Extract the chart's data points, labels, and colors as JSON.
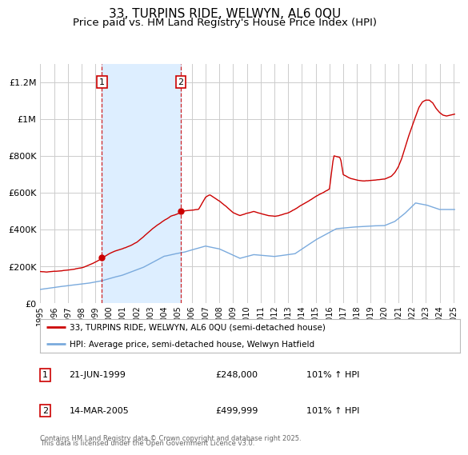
{
  "title": "33, TURPINS RIDE, WELWYN, AL6 0QU",
  "subtitle": "Price paid vs. HM Land Registry's House Price Index (HPI)",
  "title_fontsize": 11,
  "subtitle_fontsize": 9.5,
  "background_color": "#ffffff",
  "plot_bg_color": "#ffffff",
  "grid_color": "#cccccc",
  "ylim": [
    0,
    1300000
  ],
  "yticks": [
    0,
    200000,
    400000,
    600000,
    800000,
    1000000,
    1200000
  ],
  "ytick_labels": [
    "£0",
    "£200K",
    "£400K",
    "£600K",
    "£800K",
    "£1M",
    "£1.2M"
  ],
  "xlim_start": 1995.0,
  "xlim_end": 2025.5,
  "xticks": [
    1995,
    1996,
    1997,
    1998,
    1999,
    2000,
    2001,
    2002,
    2003,
    2004,
    2005,
    2006,
    2007,
    2008,
    2009,
    2010,
    2011,
    2012,
    2013,
    2014,
    2015,
    2016,
    2017,
    2018,
    2019,
    2020,
    2021,
    2022,
    2023,
    2024,
    2025
  ],
  "marker1_x": 1999.47,
  "marker1_y": 248000,
  "marker2_x": 2005.2,
  "marker2_y": 499999,
  "marker1_date": "21-JUN-1999",
  "marker1_price": "£248,000",
  "marker1_hpi": "101% ↑ HPI",
  "marker2_date": "14-MAR-2005",
  "marker2_price": "£499,999",
  "marker2_hpi": "101% ↑ HPI",
  "shade_color": "#ddeeff",
  "red_line_color": "#cc0000",
  "blue_line_color": "#7aaadd",
  "legend_line1": "33, TURPINS RIDE, WELWYN, AL6 0QU (semi-detached house)",
  "legend_line2": "HPI: Average price, semi-detached house, Welwyn Hatfield",
  "footer_line1": "Contains HM Land Registry data © Crown copyright and database right 2025.",
  "footer_line2": "This data is licensed under the Open Government Licence v3.0."
}
